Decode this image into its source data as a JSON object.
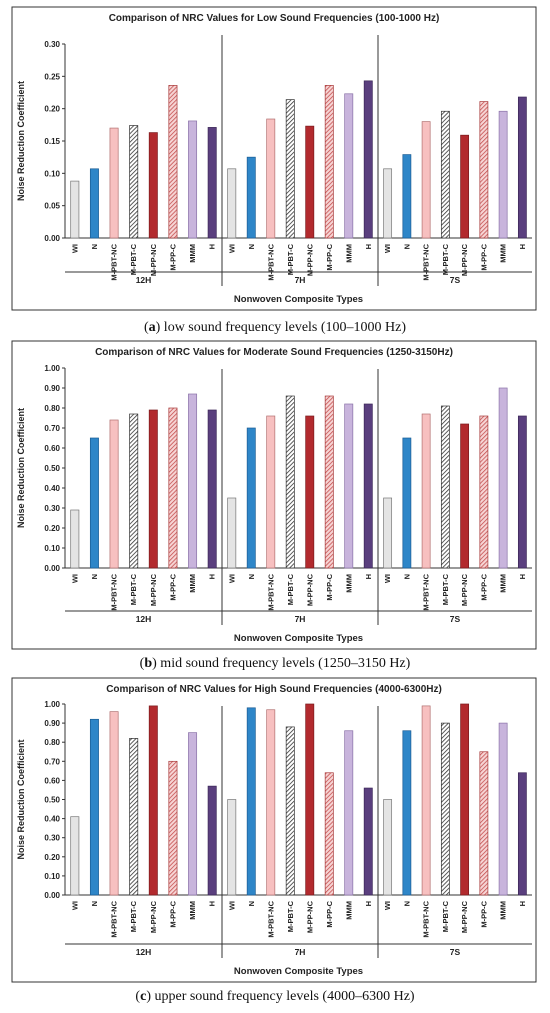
{
  "figure": {
    "captions": [
      {
        "letter": "a",
        "text": " low sound frequency levels (100–1000 Hz)"
      },
      {
        "letter": "b",
        "text": " mid sound frequency levels (1250–3150 Hz)"
      },
      {
        "letter": "c",
        "text": " upper sound frequency levels (4000–6300 Hz)"
      }
    ]
  },
  "chart_data": [
    {
      "type": "bar",
      "title": "Comparison of NRC Values for Low Sound Frequencies (100-1000 Hz)",
      "xlabel": "Nonwoven Composite Types",
      "ylabel": "Noise Reduction Coefficient",
      "ylim": [
        0,
        0.3
      ],
      "yticks": [
        "0.00",
        "0.05",
        "0.10",
        "0.15",
        "0.20",
        "0.25",
        "0.30"
      ],
      "groups": [
        "12H",
        "7H",
        "7S"
      ],
      "categories": [
        "WI",
        "N",
        "M-PBT-NC",
        "M-PBT-C",
        "M-PP-NC",
        "M-PP-C",
        "MMM",
        "H"
      ],
      "values": [
        [
          0.088,
          0.107,
          0.17,
          0.174,
          0.163,
          0.236,
          0.181,
          0.171
        ],
        [
          0.107,
          0.125,
          0.184,
          0.214,
          0.173,
          0.236,
          0.223,
          0.243
        ],
        [
          0.107,
          0.129,
          0.18,
          0.196,
          0.159,
          0.211,
          0.196,
          0.218
        ]
      ],
      "grid": false
    },
    {
      "type": "bar",
      "title": "Comparison of NRC Values for Moderate Sound Frequencies (1250-3150Hz)",
      "xlabel": "Nonwoven Composite Types",
      "ylabel": "Noise Reduction Coefficient",
      "ylim": [
        0,
        1.0
      ],
      "yticks": [
        "0.00",
        "0.10",
        "0.20",
        "0.30",
        "0.40",
        "0.50",
        "0.60",
        "0.70",
        "0.80",
        "0.90",
        "1.00"
      ],
      "groups": [
        "12H",
        "7H",
        "7S"
      ],
      "categories": [
        "WI",
        "N",
        "M-PBT-NC",
        "M-PBT-C",
        "M-PP-NC",
        "M-PP-C",
        "MMM",
        "H"
      ],
      "values": [
        [
          0.29,
          0.65,
          0.74,
          0.77,
          0.79,
          0.8,
          0.87,
          0.79
        ],
        [
          0.35,
          0.7,
          0.76,
          0.86,
          0.76,
          0.86,
          0.82,
          0.82
        ],
        [
          0.35,
          0.65,
          0.77,
          0.81,
          0.72,
          0.76,
          0.9,
          0.76
        ]
      ],
      "grid": false
    },
    {
      "type": "bar",
      "title": "Comparison of NRC Values for High Sound Frequencies (4000-6300Hz)",
      "xlabel": "Nonwoven Composite Types",
      "ylabel": "Noise Reduction Coefficient",
      "ylim": [
        0,
        1.0
      ],
      "yticks": [
        "0.00",
        "0.10",
        "0.20",
        "0.30",
        "0.40",
        "0.50",
        "0.60",
        "0.70",
        "0.80",
        "0.90",
        "1.00"
      ],
      "groups": [
        "12H",
        "7H",
        "7S"
      ],
      "categories": [
        "WI",
        "N",
        "M-PBT-NC",
        "M-PBT-C",
        "M-PP-NC",
        "M-PP-C",
        "MMM",
        "H"
      ],
      "values": [
        [
          0.41,
          0.92,
          0.96,
          0.82,
          0.99,
          0.7,
          0.85,
          0.57
        ],
        [
          0.5,
          0.98,
          0.97,
          0.88,
          1.0,
          0.64,
          0.86,
          0.56
        ],
        [
          0.5,
          0.86,
          0.99,
          0.9,
          1.0,
          0.75,
          0.9,
          0.64
        ]
      ],
      "grid": false
    }
  ],
  "styles": {
    "bar_fills": [
      "#e4e4e4",
      "#2e86c8",
      "#f7c0c0",
      "hatch-gray",
      "#b22a2e",
      "hatch-red",
      "#c8b4dc",
      "#5a3f7e"
    ],
    "bar_strokes": [
      "#777777",
      "#1a5c94",
      "#b27070",
      "#333333",
      "#7a1a1d",
      "#a83a3a",
      "#8a72a8",
      "#3a2656"
    ]
  }
}
